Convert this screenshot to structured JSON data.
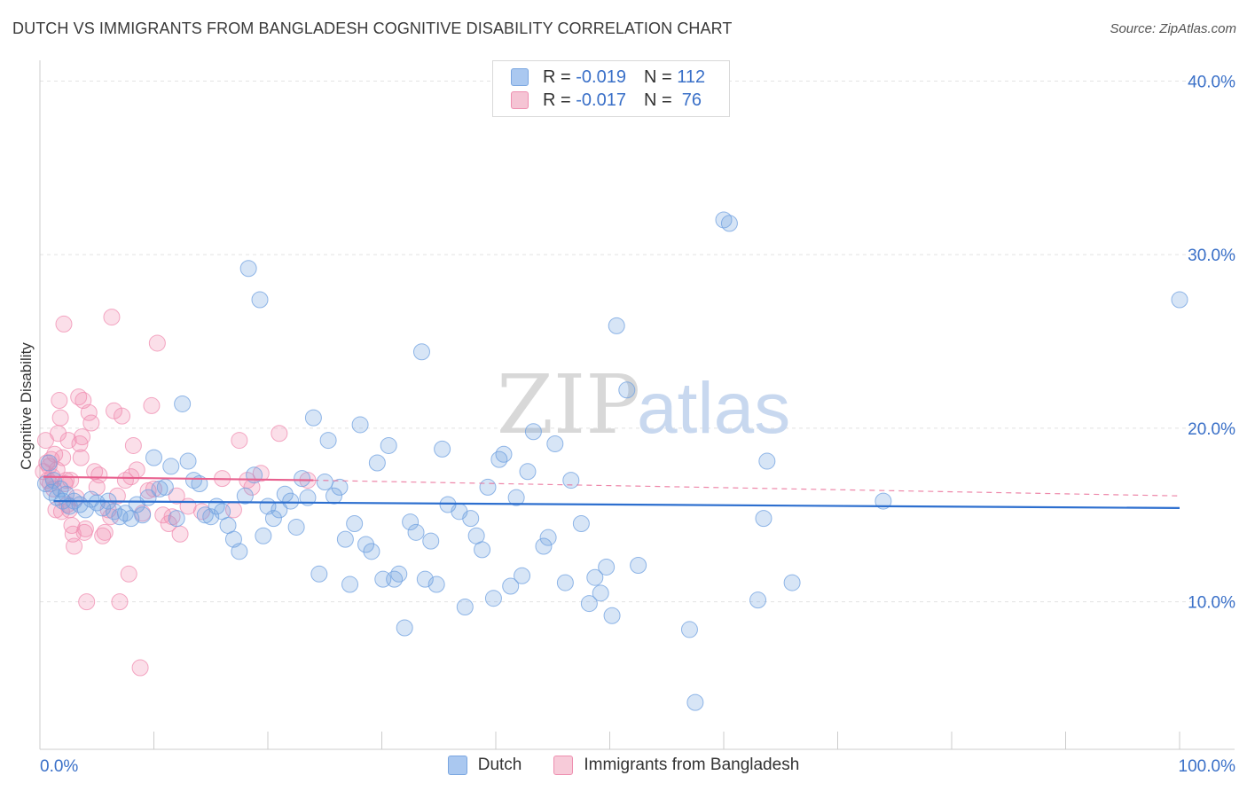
{
  "title": "DUTCH VS IMMIGRANTS FROM BANGLADESH COGNITIVE DISABILITY CORRELATION CHART",
  "source": "Source: ZipAtlas.com",
  "watermark": {
    "zip": "ZIP",
    "atlas": "atlas"
  },
  "legend": {
    "rows": [
      {
        "r_label": "R = ",
        "r_value": "-0.019",
        "n_label": "N = ",
        "n_value": "112",
        "color": "#aac8f0",
        "border": "#7aa6e0"
      },
      {
        "r_label": "R = ",
        "r_value": "-0.017",
        "n_label": "N = ",
        "n_value": " 76",
        "color": "#f5b8cc",
        "border": "#ee8fb0"
      }
    ]
  },
  "colors": {
    "dutch": "#6fa0e0",
    "bangladesh": "#f08cb0",
    "dutch_line": "#2d6fcf",
    "bangladesh_line": "#e8608e",
    "axis_text": "#3a70c8"
  },
  "chart_data": {
    "type": "scatter",
    "xlabel": "",
    "ylabel": "Cognitive Disability",
    "xlim": [
      0,
      100
    ],
    "ylim": [
      1.5,
      41.5
    ],
    "x_tick_labels": [
      "0.0%",
      "100.0%"
    ],
    "y_ticks": [
      10,
      20,
      30,
      40
    ],
    "y_tick_labels": [
      "10.0%",
      "20.0%",
      "30.0%",
      "40.0%"
    ],
    "grid": true,
    "legend_placement": "top-center",
    "series": [
      {
        "name": "Dutch",
        "trend": [
          [
            1.2,
            15.8
          ],
          [
            100,
            15.4
          ]
        ],
        "points": [
          [
            0.5,
            16.8
          ],
          [
            0.8,
            18.0
          ],
          [
            1.0,
            16.3
          ],
          [
            1.2,
            17.0
          ],
          [
            1.5,
            16.0
          ],
          [
            1.8,
            16.5
          ],
          [
            2.0,
            15.8
          ],
          [
            2.3,
            16.2
          ],
          [
            2.6,
            15.5
          ],
          [
            3.0,
            15.8
          ],
          [
            3.5,
            15.6
          ],
          [
            4.0,
            15.3
          ],
          [
            4.5,
            15.9
          ],
          [
            5.0,
            15.7
          ],
          [
            5.5,
            15.4
          ],
          [
            6.0,
            15.8
          ],
          [
            6.5,
            15.2
          ],
          [
            7.0,
            14.9
          ],
          [
            7.5,
            15.1
          ],
          [
            8.0,
            14.8
          ],
          [
            8.5,
            15.6
          ],
          [
            9.0,
            15.0
          ],
          [
            9.5,
            16.0
          ],
          [
            10.0,
            18.3
          ],
          [
            10.5,
            16.5
          ],
          [
            11.0,
            16.6
          ],
          [
            11.5,
            17.8
          ],
          [
            12.0,
            14.8
          ],
          [
            12.5,
            21.4
          ],
          [
            13.0,
            18.1
          ],
          [
            13.5,
            17.0
          ],
          [
            14.0,
            16.8
          ],
          [
            14.5,
            15.0
          ],
          [
            15.0,
            14.9
          ],
          [
            15.5,
            15.5
          ],
          [
            16.0,
            15.2
          ],
          [
            16.5,
            14.4
          ],
          [
            17.0,
            13.6
          ],
          [
            17.5,
            12.9
          ],
          [
            18.0,
            16.1
          ],
          [
            18.3,
            29.2
          ],
          [
            18.8,
            17.3
          ],
          [
            19.3,
            27.4
          ],
          [
            19.6,
            13.8
          ],
          [
            20.0,
            15.5
          ],
          [
            20.5,
            14.8
          ],
          [
            21.0,
            15.3
          ],
          [
            21.5,
            16.2
          ],
          [
            22.0,
            15.8
          ],
          [
            22.5,
            14.3
          ],
          [
            23.0,
            17.1
          ],
          [
            23.5,
            16.0
          ],
          [
            24.0,
            20.6
          ],
          [
            24.5,
            11.6
          ],
          [
            25.0,
            16.9
          ],
          [
            25.3,
            19.3
          ],
          [
            25.8,
            16.1
          ],
          [
            26.3,
            16.6
          ],
          [
            26.8,
            13.6
          ],
          [
            27.2,
            11.0
          ],
          [
            27.6,
            14.5
          ],
          [
            28.1,
            20.2
          ],
          [
            28.6,
            13.3
          ],
          [
            29.1,
            12.9
          ],
          [
            29.6,
            18.0
          ],
          [
            30.1,
            11.3
          ],
          [
            30.6,
            19.0
          ],
          [
            31.1,
            11.3
          ],
          [
            31.5,
            11.6
          ],
          [
            32.0,
            8.5
          ],
          [
            32.5,
            14.6
          ],
          [
            33.0,
            14.0
          ],
          [
            33.5,
            24.4
          ],
          [
            33.8,
            11.3
          ],
          [
            34.3,
            13.5
          ],
          [
            34.8,
            11.0
          ],
          [
            35.3,
            18.8
          ],
          [
            35.8,
            15.6
          ],
          [
            36.8,
            15.2
          ],
          [
            37.3,
            9.7
          ],
          [
            37.8,
            14.8
          ],
          [
            38.3,
            13.8
          ],
          [
            38.8,
            13.0
          ],
          [
            39.3,
            16.6
          ],
          [
            39.8,
            10.2
          ],
          [
            40.3,
            18.2
          ],
          [
            40.7,
            18.5
          ],
          [
            41.3,
            10.9
          ],
          [
            41.8,
            16.0
          ],
          [
            42.3,
            11.5
          ],
          [
            42.8,
            17.5
          ],
          [
            43.3,
            19.8
          ],
          [
            44.2,
            13.2
          ],
          [
            44.6,
            13.7
          ],
          [
            45.2,
            19.1
          ],
          [
            46.1,
            11.1
          ],
          [
            46.6,
            17.0
          ],
          [
            47.5,
            14.5
          ],
          [
            48.2,
            9.9
          ],
          [
            48.7,
            11.4
          ],
          [
            49.2,
            10.5
          ],
          [
            49.7,
            12.0
          ],
          [
            50.2,
            9.2
          ],
          [
            50.6,
            25.9
          ],
          [
            51.5,
            22.2
          ],
          [
            52.5,
            12.1
          ],
          [
            57.0,
            8.4
          ],
          [
            57.5,
            4.2
          ],
          [
            60.0,
            32.0
          ],
          [
            60.5,
            31.8
          ],
          [
            63.0,
            10.1
          ],
          [
            63.5,
            14.8
          ],
          [
            63.8,
            18.1
          ],
          [
            66.0,
            11.1
          ],
          [
            74.0,
            15.8
          ],
          [
            100.0,
            27.4
          ]
        ]
      },
      {
        "name": "Immigrants from Bangladesh",
        "trend": [
          [
            0.3,
            17.2
          ],
          [
            24,
            17.0
          ]
        ],
        "trend_dashed": [
          [
            24,
            17.0
          ],
          [
            100,
            16.1
          ]
        ],
        "points": [
          [
            0.3,
            17.5
          ],
          [
            0.5,
            19.3
          ],
          [
            0.6,
            18.0
          ],
          [
            0.7,
            17.0
          ],
          [
            0.8,
            17.8
          ],
          [
            0.9,
            16.8
          ],
          [
            1.0,
            18.2
          ],
          [
            1.1,
            17.2
          ],
          [
            1.2,
            16.5
          ],
          [
            1.3,
            18.5
          ],
          [
            1.4,
            15.3
          ],
          [
            1.5,
            17.6
          ],
          [
            1.6,
            19.7
          ],
          [
            1.7,
            21.6
          ],
          [
            1.8,
            20.6
          ],
          [
            1.9,
            15.2
          ],
          [
            2.0,
            18.3
          ],
          [
            2.1,
            26.0
          ],
          [
            2.2,
            16.8
          ],
          [
            2.3,
            17.0
          ],
          [
            2.4,
            15.6
          ],
          [
            2.5,
            19.3
          ],
          [
            2.6,
            15.3
          ],
          [
            2.7,
            17.0
          ],
          [
            2.8,
            14.4
          ],
          [
            2.9,
            13.9
          ],
          [
            3.0,
            13.2
          ],
          [
            3.2,
            16.0
          ],
          [
            3.4,
            21.8
          ],
          [
            3.5,
            19.1
          ],
          [
            3.6,
            18.3
          ],
          [
            3.7,
            19.5
          ],
          [
            3.8,
            21.6
          ],
          [
            3.9,
            14.0
          ],
          [
            4.0,
            14.2
          ],
          [
            4.1,
            10.0
          ],
          [
            4.3,
            20.9
          ],
          [
            4.5,
            20.3
          ],
          [
            4.8,
            17.5
          ],
          [
            5.0,
            16.6
          ],
          [
            5.2,
            17.3
          ],
          [
            5.5,
            13.8
          ],
          [
            5.7,
            14.0
          ],
          [
            6.0,
            15.3
          ],
          [
            6.2,
            14.9
          ],
          [
            6.3,
            26.4
          ],
          [
            6.5,
            21.0
          ],
          [
            6.8,
            16.1
          ],
          [
            7.0,
            10.0
          ],
          [
            7.2,
            20.7
          ],
          [
            7.5,
            17.0
          ],
          [
            7.8,
            11.6
          ],
          [
            8.0,
            17.2
          ],
          [
            8.2,
            19.0
          ],
          [
            8.5,
            17.6
          ],
          [
            8.8,
            6.2
          ],
          [
            9.0,
            15.1
          ],
          [
            9.5,
            16.4
          ],
          [
            9.8,
            21.3
          ],
          [
            10.0,
            16.5
          ],
          [
            10.3,
            24.9
          ],
          [
            10.8,
            15.0
          ],
          [
            11.3,
            14.5
          ],
          [
            11.6,
            14.9
          ],
          [
            12.0,
            16.1
          ],
          [
            12.3,
            13.9
          ],
          [
            13.0,
            15.5
          ],
          [
            14.2,
            15.2
          ],
          [
            16.0,
            17.1
          ],
          [
            17.0,
            15.3
          ],
          [
            17.5,
            19.3
          ],
          [
            18.2,
            17.0
          ],
          [
            18.6,
            16.6
          ],
          [
            19.4,
            17.4
          ],
          [
            21.0,
            19.7
          ],
          [
            23.5,
            17.0
          ]
        ]
      }
    ]
  }
}
